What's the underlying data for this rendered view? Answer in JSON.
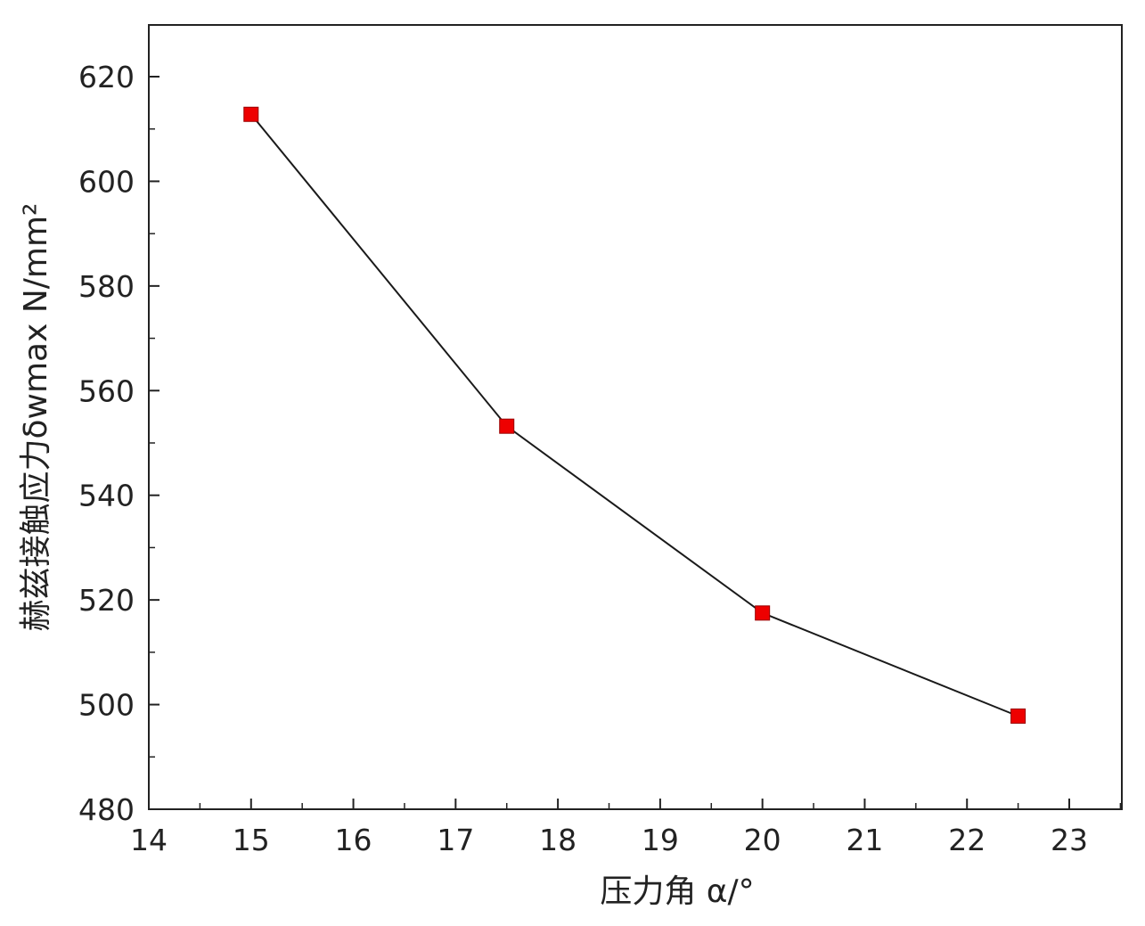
{
  "chart_data": {
    "type": "line",
    "xlabel": "压力角 α/°",
    "ylabel": "赫兹接触应力δwmax N/mm²",
    "xlim": [
      14,
      23.5
    ],
    "ylim": [
      480,
      630
    ],
    "x_ticks": [
      14,
      15,
      16,
      17,
      18,
      19,
      20,
      21,
      22,
      23
    ],
    "y_ticks": [
      480,
      500,
      520,
      540,
      560,
      580,
      600,
      620
    ],
    "x_tick_labels": [
      "14",
      "15",
      "16",
      "17",
      "18",
      "19",
      "20",
      "21",
      "22",
      "23"
    ],
    "y_tick_labels": [
      "480",
      "500",
      "520",
      "540",
      "560",
      "580",
      "600",
      "620"
    ],
    "grid": false,
    "series": [
      {
        "x": [
          15,
          17.5,
          20,
          22.5
        ],
        "values": [
          612.8,
          553.2,
          517.5,
          497.8
        ],
        "line_color": "#1a1a1a",
        "marker": "square",
        "marker_color": "#ee0000"
      }
    ]
  }
}
